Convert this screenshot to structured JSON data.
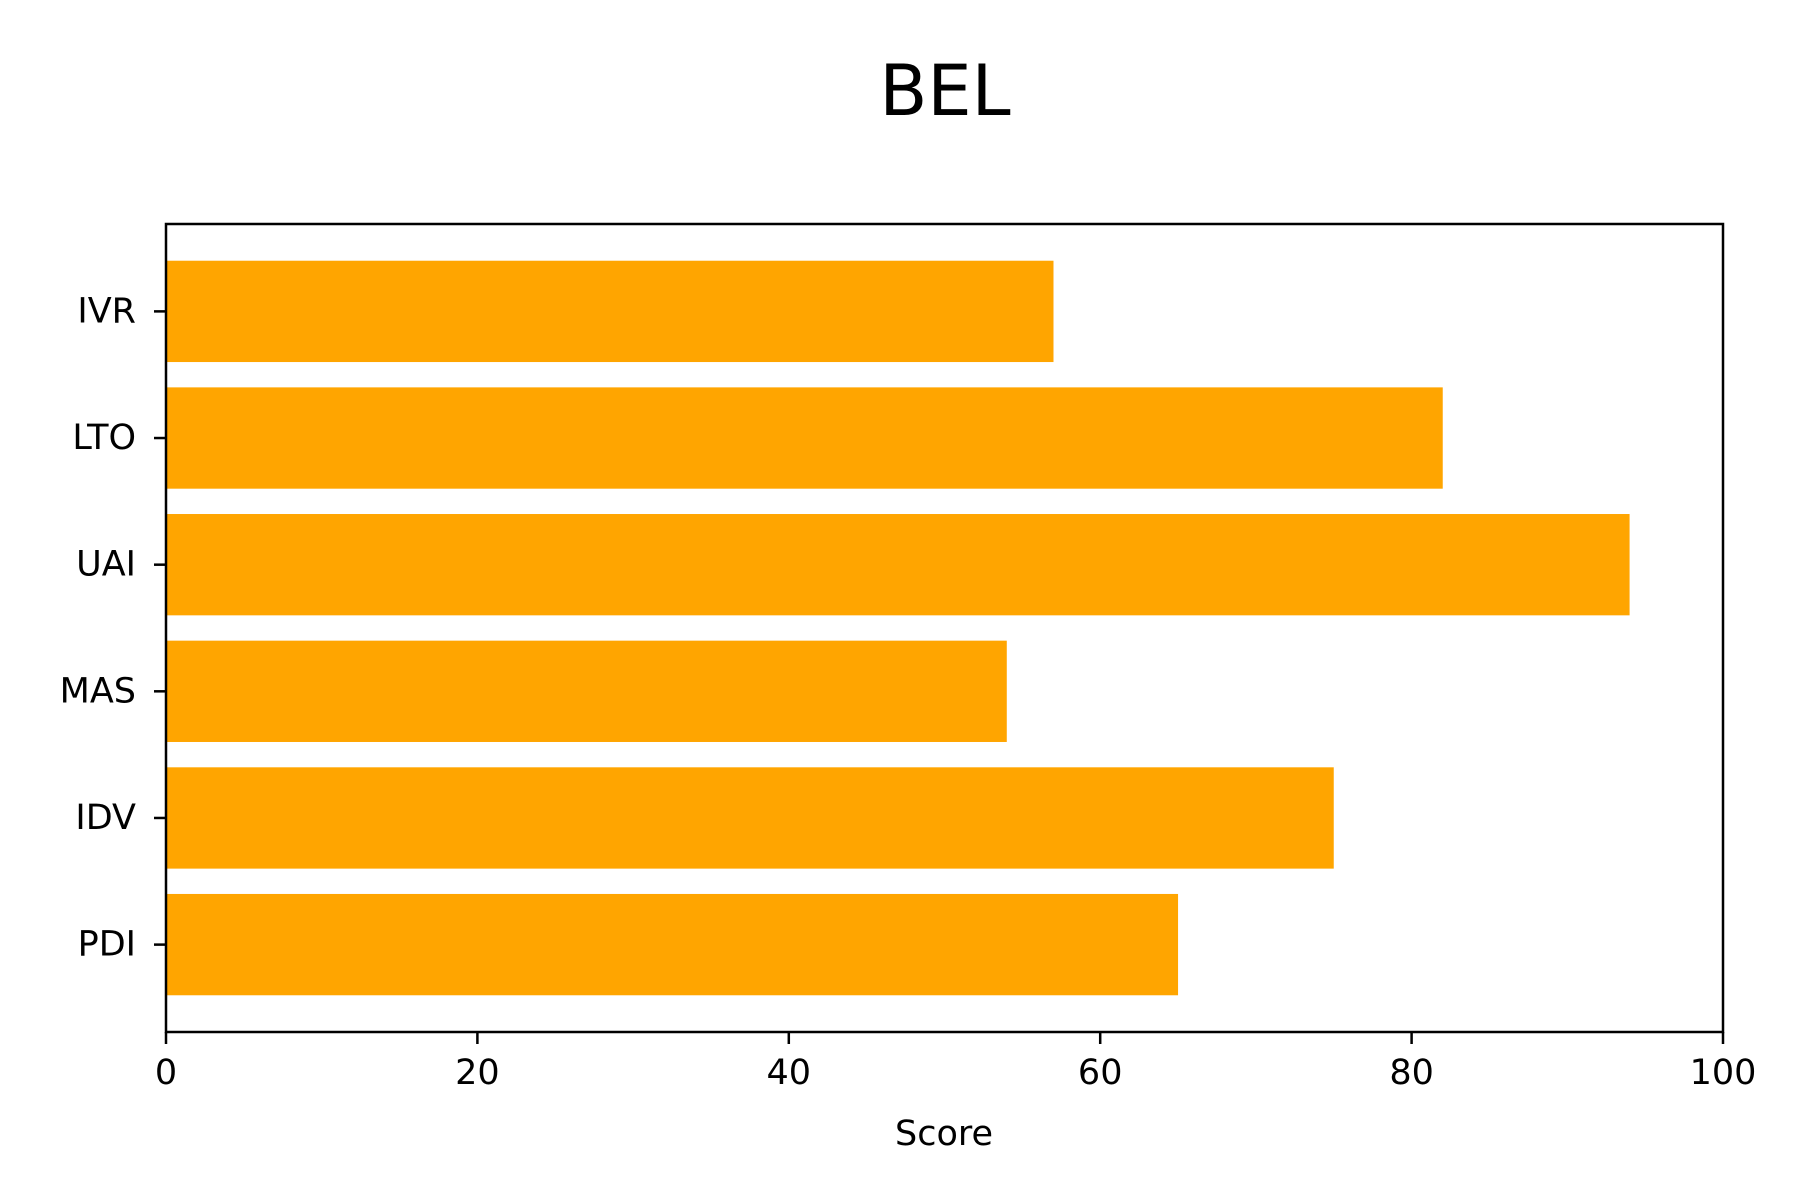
{
  "chart_data": {
    "type": "bar",
    "orientation": "horizontal",
    "title": "BEL",
    "xlabel": "Score",
    "ylabel": "",
    "categories": [
      "PDI",
      "IDV",
      "MAS",
      "UAI",
      "LTO",
      "IVR"
    ],
    "values": [
      65,
      75,
      54,
      94,
      82,
      57
    ],
    "xlim": [
      0,
      100
    ],
    "xticks": [
      0,
      20,
      40,
      60,
      80,
      100
    ],
    "bar_color": "#FFA500",
    "grid": false,
    "legend": "none"
  }
}
